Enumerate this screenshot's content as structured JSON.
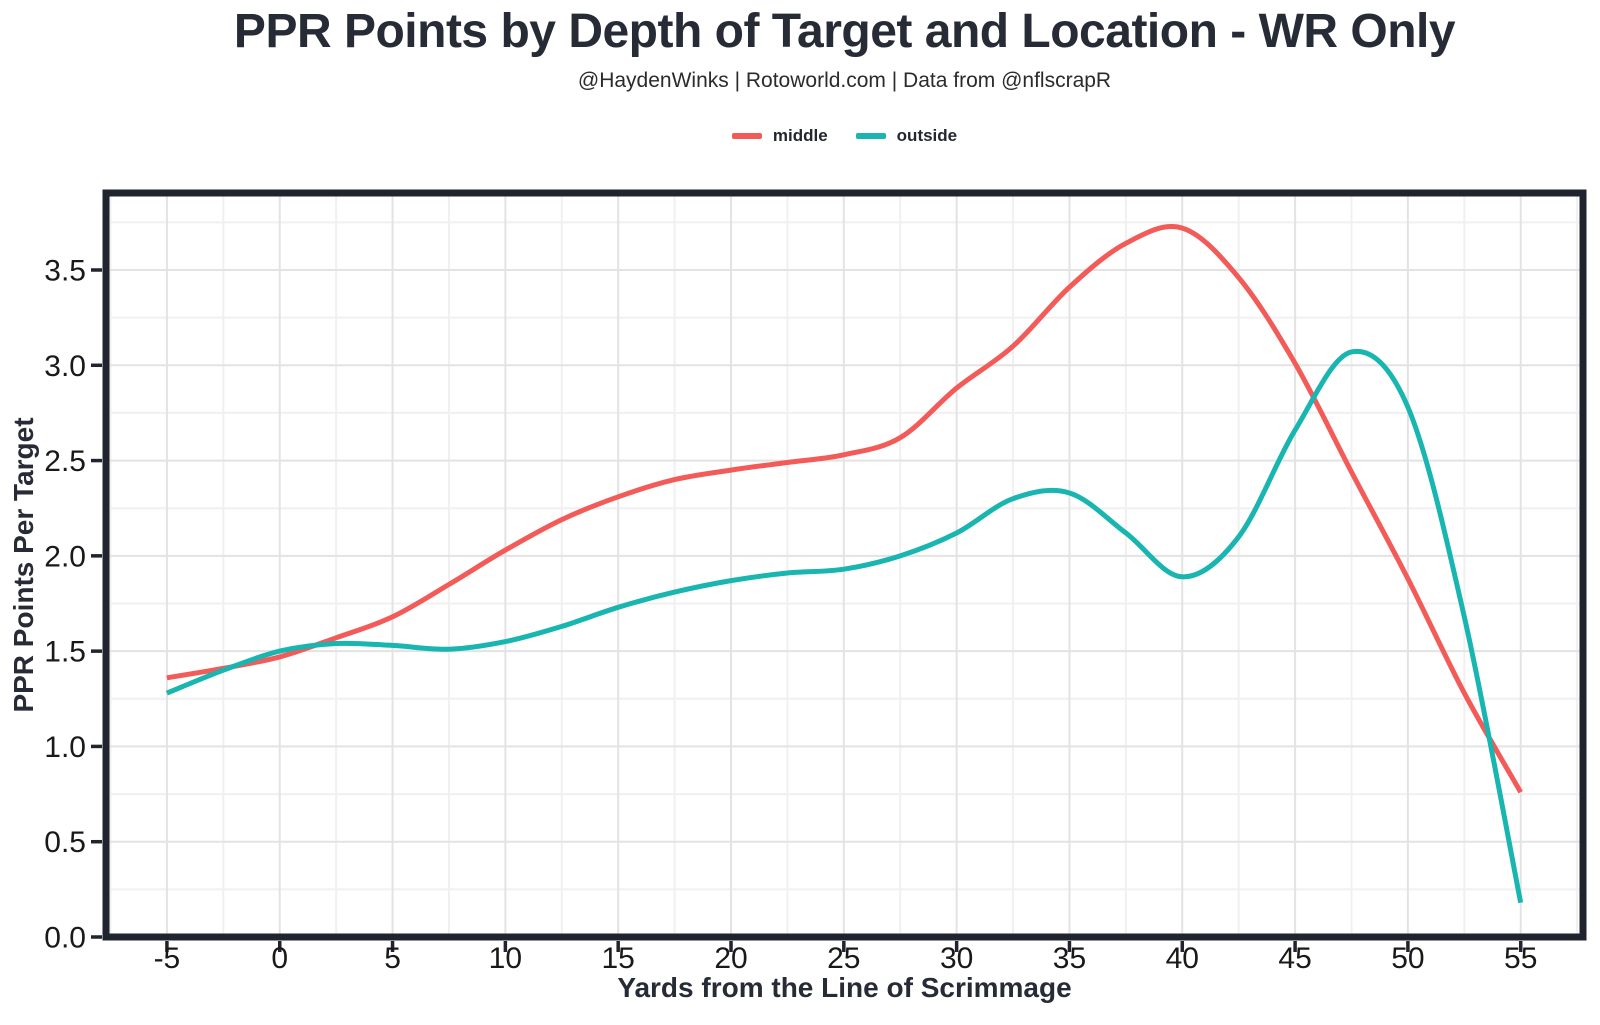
{
  "header": {
    "title": "PPR Points by Depth of Target and Location - WR Only",
    "subtitle": "@HaydenWinks | Rotoworld.com | Data from @nflscrapR"
  },
  "legend": {
    "items": [
      {
        "label": "middle",
        "color": "#f25b58"
      },
      {
        "label": "outside",
        "color": "#18b5b1"
      }
    ]
  },
  "chart_data": {
    "type": "line",
    "title": "PPR Points by Depth of Target and Location - WR Only",
    "subtitle": "@HaydenWinks | Rotoworld.com | Data from @nflscrapR",
    "xlabel": "Yards from the Line of Scrimmage",
    "ylabel": "PPR Points Per Target",
    "legend_position": "top-center",
    "grid": {
      "major": true,
      "minor": true
    },
    "xlim": [
      -7.7,
      57.76
    ],
    "ylim": [
      0,
      3.904
    ],
    "x_ticks": [
      -5,
      0,
      5,
      10,
      15,
      20,
      25,
      30,
      35,
      40,
      45,
      50,
      55
    ],
    "y_ticks": [
      0.0,
      0.5,
      1.0,
      1.5,
      2.0,
      2.5,
      3.0,
      3.5
    ],
    "x": [
      -5,
      -2.5,
      0,
      2.5,
      5,
      7.5,
      10,
      12.5,
      15,
      17.5,
      20,
      22.5,
      25,
      27.5,
      30,
      32.5,
      35,
      37.5,
      40,
      42.5,
      45,
      47.5,
      50,
      52.5,
      55
    ],
    "series": [
      {
        "name": "middle",
        "color": "#f25b58",
        "values": [
          1.36,
          1.41,
          1.47,
          1.57,
          1.68,
          1.85,
          2.03,
          2.19,
          2.31,
          2.4,
          2.45,
          2.49,
          2.53,
          2.62,
          2.88,
          3.1,
          3.41,
          3.64,
          3.72,
          3.46,
          3.01,
          2.44,
          1.88,
          1.28,
          0.76
        ]
      },
      {
        "name": "outside",
        "color": "#18b5b1",
        "values": [
          1.28,
          1.4,
          1.5,
          1.54,
          1.53,
          1.51,
          1.55,
          1.63,
          1.73,
          1.81,
          1.87,
          1.91,
          1.93,
          2.0,
          2.12,
          2.3,
          2.33,
          2.12,
          1.89,
          2.1,
          2.66,
          3.07,
          2.78,
          1.68,
          0.18
        ]
      }
    ],
    "annotations": {
      "middle_peak": {
        "x": 39.5,
        "y": 3.73
      },
      "outside_peak": {
        "x": 47.8,
        "y": 3.07
      },
      "outside_local_max": {
        "x": 34,
        "y": 2.35
      },
      "outside_local_min": {
        "x": 40.5,
        "y": 1.87
      }
    },
    "style": {
      "panel_border_color": "#20242f",
      "grid_major_color": "#e3e3e3",
      "grid_minor_color": "#f0f0f0",
      "tick_color": "#20242f",
      "tick_label_color": "#191919",
      "line_width": 5
    }
  }
}
